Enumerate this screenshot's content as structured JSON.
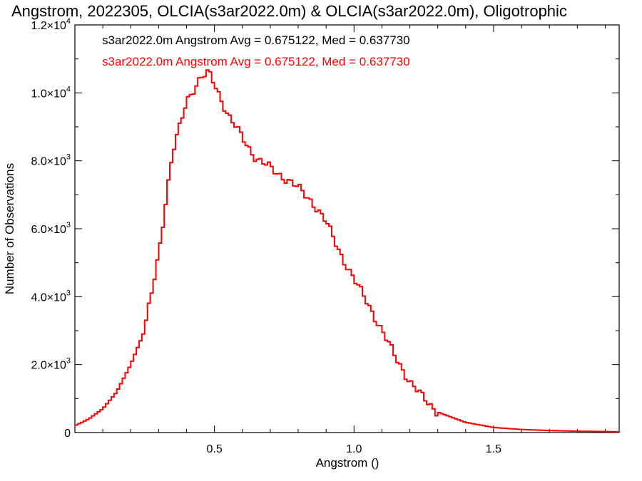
{
  "chart_data": {
    "type": "line",
    "title": "Angstrom, 2022305, OLCIA(s3ar2022.0m) & OLCIA(s3ar2022.0m), Oligotrophic",
    "xlabel": "Angstrom ()",
    "ylabel": "Number of Observations",
    "xlim": [
      0.0,
      1.95
    ],
    "ylim": [
      0,
      12000
    ],
    "x_ticks": [
      {
        "value": 0.5,
        "label": "0.5"
      },
      {
        "value": 1.0,
        "label": "1.0"
      },
      {
        "value": 1.5,
        "label": "1.5"
      }
    ],
    "y_ticks": [
      {
        "value": 0,
        "mant": "0",
        "exp": ""
      },
      {
        "value": 2000,
        "mant": "2.0×10",
        "exp": "3"
      },
      {
        "value": 4000,
        "mant": "4.0×10",
        "exp": "3"
      },
      {
        "value": 6000,
        "mant": "6.0×10",
        "exp": "3"
      },
      {
        "value": 8000,
        "mant": "8.0×10",
        "exp": "3"
      },
      {
        "value": 10000,
        "mant": "1.0×10",
        "exp": "4"
      },
      {
        "value": 12000,
        "mant": "1.2×10",
        "exp": "4"
      }
    ],
    "legend": [
      {
        "text": "s3ar2022.0m Angstrom Avg = 0.675122, Med = 0.637730",
        "color": "#000000"
      },
      {
        "text": "s3ar2022.0m Angstrom Avg = 0.675122, Med = 0.637730",
        "color": "#ff0000"
      }
    ],
    "series": [
      {
        "color": "#ff0000",
        "style": "step",
        "x": [
          0.0,
          0.05,
          0.1,
          0.15,
          0.2,
          0.25,
          0.3,
          0.35,
          0.4,
          0.45,
          0.48,
          0.5,
          0.55,
          0.6,
          0.65,
          0.7,
          0.75,
          0.8,
          0.85,
          0.9,
          0.95,
          1.0,
          1.05,
          1.1,
          1.15,
          1.2,
          1.25,
          1.3,
          1.4,
          1.5,
          1.6,
          1.7,
          1.8,
          1.9,
          1.95
        ],
        "y": [
          200,
          400,
          700,
          1200,
          2000,
          3000,
          5300,
          8200,
          9800,
          10400,
          10600,
          10300,
          9300,
          8700,
          8050,
          7800,
          7500,
          7200,
          6800,
          6200,
          5300,
          4500,
          3800,
          3000,
          2200,
          1500,
          1000,
          600,
          300,
          150,
          90,
          60,
          40,
          30,
          20
        ]
      },
      {
        "color": "#000000",
        "style": "step",
        "x": [
          0.0,
          0.05,
          0.1,
          0.15,
          0.2,
          0.25,
          0.3,
          0.35,
          0.4,
          0.45,
          0.48,
          0.5,
          0.55,
          0.6,
          0.65,
          0.7,
          0.75,
          0.8,
          0.85,
          0.9,
          0.95,
          1.0,
          1.05,
          1.1,
          1.15,
          1.2,
          1.25,
          1.3,
          1.4,
          1.5,
          1.6,
          1.7,
          1.8,
          1.9,
          1.95
        ],
        "y": [
          200,
          400,
          700,
          1200,
          2000,
          3000,
          5300,
          8200,
          9800,
          10400,
          10600,
          10300,
          9300,
          8700,
          8050,
          7800,
          7500,
          7200,
          6800,
          6200,
          5300,
          4500,
          3800,
          3000,
          2200,
          1500,
          1000,
          600,
          300,
          150,
          90,
          60,
          40,
          30,
          20
        ]
      }
    ]
  }
}
